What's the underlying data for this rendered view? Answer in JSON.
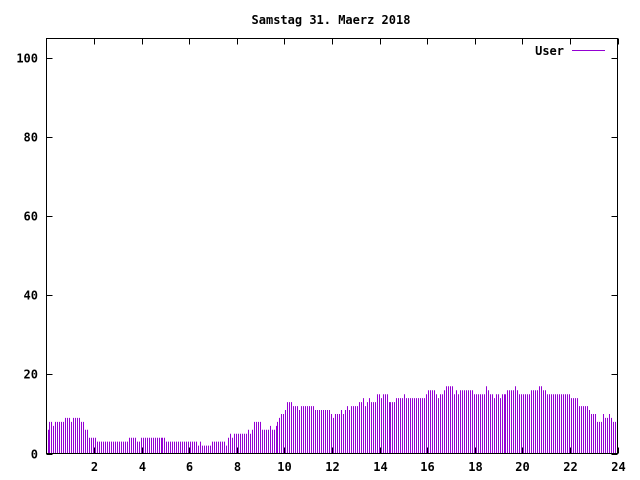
{
  "chart_data": {
    "type": "bar",
    "title": "Samstag 31. Maerz 2018",
    "xlabel": "",
    "ylabel": "",
    "xlim": [
      0,
      24
    ],
    "ylim": [
      0,
      105
    ],
    "x_ticks": [
      "2",
      "4",
      "6",
      "8",
      "10",
      "12",
      "14",
      "16",
      "18",
      "20",
      "22",
      "24"
    ],
    "y_ticks": [
      "0",
      "20",
      "40",
      "60",
      "80",
      "100"
    ],
    "grid": false,
    "legend_position": "top-right",
    "series": [
      {
        "name": "User",
        "color": "#9400d3",
        "values": [
          6,
          8,
          8,
          7,
          8,
          8,
          8,
          8,
          8,
          9,
          9,
          9,
          8,
          9,
          9,
          9,
          9,
          8,
          8,
          6,
          6,
          4,
          4,
          4,
          4,
          3,
          3,
          3,
          3,
          3,
          3,
          3,
          3,
          3,
          3,
          3,
          3,
          3,
          3,
          3,
          3,
          4,
          4,
          4,
          4,
          3,
          3,
          4,
          4,
          4,
          4,
          4,
          4,
          4,
          4,
          4,
          4,
          4,
          4,
          4,
          3,
          3,
          3,
          3,
          3,
          3,
          3,
          3,
          3,
          3,
          3,
          3,
          3,
          3,
          3,
          3,
          2,
          3,
          2,
          2,
          2,
          2,
          2,
          3,
          3,
          3,
          3,
          3,
          3,
          3,
          2,
          4,
          5,
          4,
          5,
          5,
          5,
          5,
          5,
          5,
          5,
          6,
          5,
          6,
          8,
          8,
          8,
          8,
          6,
          6,
          6,
          6,
          7,
          6,
          6,
          7,
          8,
          9,
          10,
          10,
          11,
          13,
          13,
          13,
          12,
          12,
          12,
          11,
          12,
          12,
          12,
          12,
          12,
          12,
          12,
          11,
          11,
          11,
          11,
          11,
          11,
          11,
          11,
          10,
          9,
          10,
          10,
          10,
          11,
          10,
          11,
          12,
          11,
          12,
          12,
          12,
          12,
          13,
          13,
          14,
          12,
          13,
          14,
          13,
          13,
          13,
          15,
          15,
          14,
          15,
          15,
          15,
          13,
          13,
          13,
          13,
          14,
          14,
          14,
          14,
          15,
          14,
          14,
          14,
          14,
          14,
          14,
          14,
          14,
          14,
          14,
          15,
          16,
          16,
          16,
          16,
          15,
          14,
          15,
          15,
          16,
          17,
          17,
          17,
          17,
          15,
          16,
          15,
          16,
          16,
          16,
          16,
          16,
          16,
          16,
          15,
          15,
          15,
          15,
          15,
          15,
          17,
          16,
          15,
          15,
          14,
          15,
          15,
          14,
          15,
          15,
          15,
          16,
          16,
          16,
          16,
          17,
          16,
          15,
          15,
          15,
          15,
          15,
          15,
          16,
          16,
          16,
          16,
          17,
          17,
          16,
          16,
          15,
          15,
          15,
          15,
          15,
          15,
          15,
          15,
          15,
          15,
          15,
          15,
          14,
          14,
          14,
          14,
          12,
          12,
          12,
          12,
          12,
          11,
          10,
          10,
          10,
          8,
          8,
          8,
          10,
          9,
          9,
          10,
          9,
          8,
          8,
          8
        ]
      }
    ]
  }
}
